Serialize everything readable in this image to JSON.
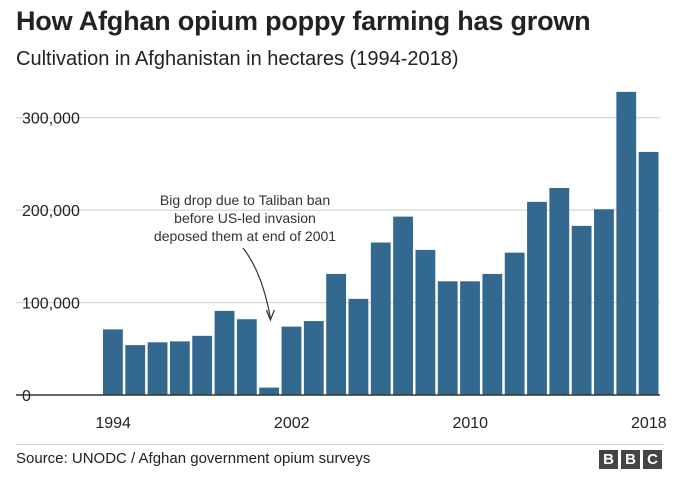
{
  "header": {
    "title": "How Afghan opium poppy farming has grown",
    "subtitle": "Cultivation in Afghanistan in hectares (1994-2018)"
  },
  "footer": {
    "source": "Source: UNODC / Afghan government opium surveys",
    "logo_letters": [
      "B",
      "B",
      "C"
    ]
  },
  "colors": {
    "bar": "#33698e",
    "grid": "#cccccc",
    "axis": "#333333",
    "text": "#222222"
  },
  "chart_data": {
    "type": "bar",
    "title": "How Afghan opium poppy farming has grown",
    "subtitle": "Cultivation in Afghanistan in hectares (1994-2018)",
    "xlabel": "",
    "ylabel": "",
    "categories": [
      "1994",
      "1995",
      "1996",
      "1997",
      "1998",
      "1999",
      "2000",
      "2001",
      "2002",
      "2003",
      "2004",
      "2005",
      "2006",
      "2007",
      "2008",
      "2009",
      "2010",
      "2011",
      "2012",
      "2013",
      "2014",
      "2015",
      "2016",
      "2017",
      "2018"
    ],
    "values": [
      71000,
      54000,
      57000,
      58000,
      64000,
      91000,
      82000,
      8000,
      74000,
      80000,
      131000,
      104000,
      165000,
      193000,
      157000,
      123000,
      123000,
      131000,
      154000,
      209000,
      224000,
      183000,
      201000,
      328000,
      263000
    ],
    "x_tick_labels": [
      "1994",
      "2002",
      "2010",
      "2018"
    ],
    "x_tick_indices": [
      0,
      8,
      16,
      24
    ],
    "y_ticks": [
      0,
      100000,
      200000,
      300000
    ],
    "y_tick_labels": [
      "0",
      "100,000",
      "200,000",
      "300,000"
    ],
    "ylim": [
      0,
      330000
    ],
    "grid": true,
    "annotation": {
      "lines": [
        "Big drop due to Taliban ban",
        "before US-led invasion",
        "deposed them at end of 2001"
      ],
      "target_category": "2001"
    }
  }
}
